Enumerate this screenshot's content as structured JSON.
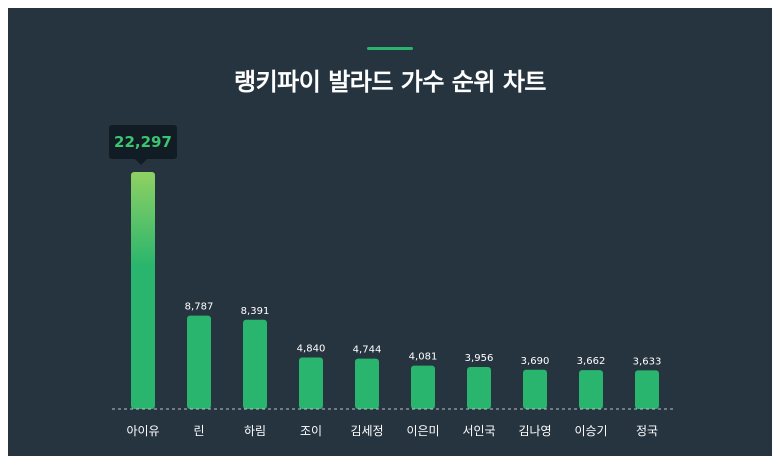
{
  "title": "랭키파이 발라드 가수 순위 차트",
  "tooltip": {
    "value_label": "22,297"
  },
  "colors": {
    "background": "#263440",
    "accent": "#29b56d",
    "bar": "#29b56d",
    "bar_top_highlight": "#8fd163",
    "tooltip_bg": "#111c24",
    "tooltip_text": "#3cc46e"
  },
  "chart_data": {
    "type": "bar",
    "title": "랭키파이 발라드 가수 순위 차트",
    "categories": [
      "아이유",
      "린",
      "하림",
      "조이",
      "김세정",
      "이은미",
      "서인국",
      "김나영",
      "이승기",
      "정국"
    ],
    "values": [
      22297,
      8787,
      8391,
      4840,
      4744,
      4081,
      3956,
      3690,
      3662,
      3633
    ],
    "value_labels": [
      "22,297",
      "8,787",
      "8,391",
      "4,840",
      "4,744",
      "4,081",
      "3,956",
      "3,690",
      "3,662",
      "3,633"
    ],
    "ylim": [
      0,
      22297
    ],
    "grid": false,
    "legend": "none"
  }
}
